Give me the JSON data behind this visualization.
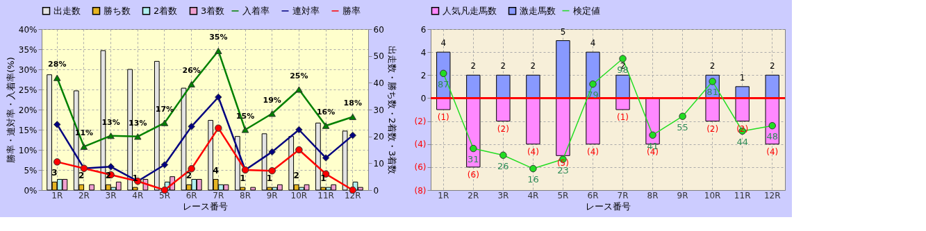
{
  "chart_data": [
    {
      "type": "bar",
      "categories": [
        "1R",
        "2R",
        "3R",
        "4R",
        "5R",
        "6R",
        "7R",
        "8R",
        "9R",
        "10R",
        "11R",
        "12R"
      ],
      "xlabel": "レース番号",
      "ylabel": "勝率・連対率・入着率(%)",
      "y2label": "出走数・勝ち数・2着数・3着数",
      "ylim": [
        0,
        40
      ],
      "yticks": [
        {
          "value": 0,
          "label": "0%"
        },
        {
          "value": 5,
          "label": "5%"
        },
        {
          "value": 10,
          "label": "10%"
        },
        {
          "value": 15,
          "label": "15%"
        },
        {
          "value": 20,
          "label": "20%"
        },
        {
          "value": 25,
          "label": "25%"
        },
        {
          "value": 30,
          "label": "30%"
        },
        {
          "value": 35,
          "label": "35%"
        },
        {
          "value": 40,
          "label": "40%"
        }
      ],
      "y2lim": [
        0,
        60
      ],
      "y2ticks": [
        0,
        10,
        20,
        30,
        40,
        50,
        60
      ],
      "grid": true,
      "legend": "top",
      "series": [
        {
          "name": "出走数",
          "axis": "y2",
          "color": "#e4e4e4",
          "values": [
            43,
            37,
            52,
            45,
            48,
            38,
            26,
            20,
            21,
            20,
            25,
            22
          ]
        },
        {
          "name": "勝ち数",
          "axis": "y2",
          "color": "#e6b422",
          "values": [
            3,
            2,
            2,
            1,
            0,
            2,
            4,
            1,
            1,
            2,
            1,
            0
          ],
          "value_labels": [
            "3",
            "2",
            "2",
            "1",
            null,
            "2",
            "4",
            "1",
            "1",
            "2",
            "1",
            null
          ]
        },
        {
          "name": "2着数",
          "axis": "y2",
          "color": "#b0f0f0",
          "values": [
            4,
            0,
            1,
            0,
            3,
            4,
            2,
            0,
            1,
            1,
            1,
            3
          ]
        },
        {
          "name": "3着数",
          "axis": "y2",
          "color": "#f0a0d0",
          "values": [
            4,
            2,
            3,
            4,
            5,
            4,
            2,
            1,
            2,
            2,
            2,
            1
          ]
        },
        {
          "name": "入着率",
          "type": "line",
          "color": "#008000",
          "marker": "triangle",
          "values": [
            27.9,
            10.8,
            13.5,
            13.3,
            16.7,
            26.3,
            34.6,
            15,
            19,
            25,
            16,
            18.2
          ],
          "value_labels": [
            "28%",
            "11%",
            "13%",
            "13%",
            "17%",
            "26%",
            "35%",
            "15%",
            "19%",
            "25%",
            "16%",
            "18%"
          ]
        },
        {
          "name": "連対率",
          "type": "line",
          "color": "#000080",
          "marker": "diamond",
          "values": [
            16.3,
            5.4,
            5.8,
            2.2,
            6.3,
            15.8,
            23.1,
            5,
            9.5,
            15,
            8,
            13.6
          ]
        },
        {
          "name": "勝率",
          "type": "line",
          "color": "#ff0000",
          "marker": "circle",
          "values": [
            7,
            5.4,
            3.8,
            2.2,
            0,
            5.3,
            15.4,
            5,
            4.8,
            10,
            4,
            0
          ]
        }
      ]
    },
    {
      "type": "bar",
      "categories": [
        "1R",
        "2R",
        "3R",
        "4R",
        "5R",
        "6R",
        "7R",
        "8R",
        "9R",
        "10R",
        "11R",
        "12R"
      ],
      "xlabel": "レース番号",
      "ylim": [
        -8,
        6
      ],
      "yticks": [
        6,
        4,
        2,
        0,
        {
          "value": -2,
          "label": "(2)"
        },
        {
          "value": -4,
          "label": "(4)"
        },
        {
          "value": -6,
          "label": "(6)"
        },
        {
          "value": -8,
          "label": "(8)"
        }
      ],
      "y2lim": [
        0,
        120
      ],
      "stacked": true,
      "grid": true,
      "legend": "top",
      "ref_lines": [
        {
          "axis": "y",
          "value": 0,
          "color": "#ff0000"
        }
      ],
      "series": [
        {
          "name": "人気凡走馬数",
          "color": "#ff88ff",
          "values": [
            -1,
            -6,
            -2,
            -4,
            -5,
            -4,
            -1,
            -4,
            0,
            -2,
            -2,
            -4
          ],
          "value_labels": [
            "(1)",
            "(6)",
            "(2)",
            "(4)",
            "(5)",
            "(4)",
            "(1)",
            "(4)",
            null,
            "(2)",
            "(2)",
            "(4)"
          ]
        },
        {
          "name": "激走馬数",
          "color": "#8899ff",
          "values": [
            4,
            2,
            2,
            2,
            5,
            4,
            2,
            0,
            0,
            2,
            1,
            2
          ],
          "value_labels": [
            "4",
            "2",
            "2",
            "2",
            "5",
            "4",
            "2",
            null,
            null,
            "2",
            "1",
            "2"
          ]
        },
        {
          "name": "検定値",
          "type": "line",
          "axis": "y2",
          "color": "#22dd22",
          "marker": "circle",
          "values": [
            87,
            31,
            26,
            16,
            23,
            79,
            98,
            41,
            55,
            81,
            44,
            48
          ],
          "value_labels": [
            "87",
            "31",
            "26",
            "16",
            "23",
            "79",
            "98",
            "41",
            "55",
            "81",
            "44",
            "48"
          ]
        }
      ]
    }
  ]
}
